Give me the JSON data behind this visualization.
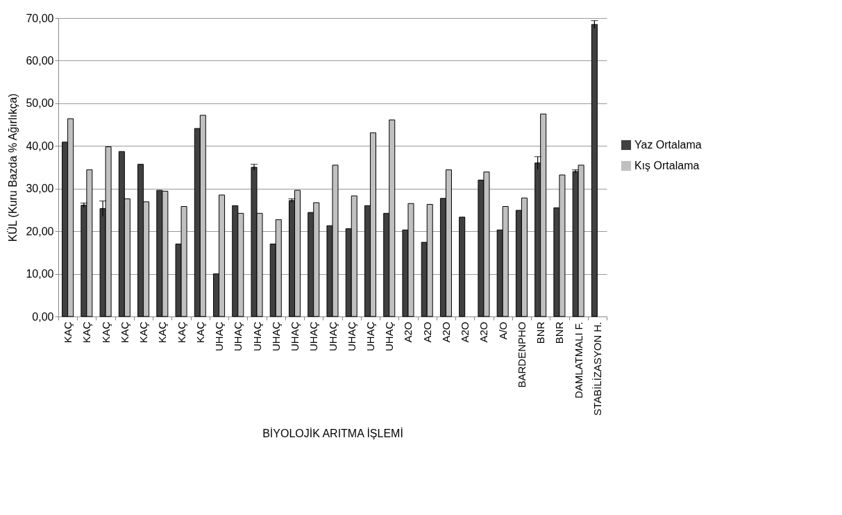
{
  "chart_data": {
    "type": "bar",
    "xlabel": "BİYOLOJİK ARITMA İŞLEMİ",
    "ylabel": "KÜL (Kuru Bazda % Ağırlıkça)",
    "categories": [
      "KAÇ",
      "KAÇ",
      "KAÇ",
      "KAÇ",
      "KAÇ",
      "KAÇ",
      "KAÇ",
      "KAÇ",
      "UHAÇ",
      "UHAÇ",
      "UHAÇ",
      "UHAÇ",
      "UHAÇ",
      "UHAÇ",
      "UHAÇ",
      "UHAÇ",
      "UHAÇ",
      "UHAÇ",
      "A2O",
      "A2O",
      "A2O",
      "A2O",
      "A2O",
      "A/O",
      "BARDENPHO",
      "BNR",
      "BNR",
      "DAMLATMALI F.",
      "STABİLİZASYON H."
    ],
    "series": [
      {
        "name": "Yaz Ortalama",
        "color": "#404040",
        "values": [
          40.9,
          26.1,
          25.3,
          38.7,
          35.7,
          29.6,
          17.0,
          44.1,
          10.0,
          26.0,
          35.0,
          17.0,
          27.2,
          24.4,
          21.3,
          20.6,
          26.0,
          24.2,
          20.3,
          17.4,
          27.7,
          23.3,
          32.0,
          20.3,
          24.9,
          36.0,
          25.5,
          34.0,
          68.5
        ],
        "errors": [
          null,
          0.5,
          1.8,
          null,
          null,
          null,
          null,
          null,
          null,
          null,
          0.7,
          null,
          0.4,
          null,
          null,
          null,
          null,
          null,
          null,
          null,
          null,
          null,
          null,
          null,
          null,
          1.5,
          null,
          0.4,
          0.9
        ]
      },
      {
        "name": "Kış Ortalama",
        "color": "#c0c0c0",
        "values": [
          46.4,
          34.4,
          39.8,
          27.6,
          26.9,
          29.4,
          25.8,
          47.2,
          28.5,
          24.2,
          24.2,
          22.7,
          29.6,
          26.7,
          35.5,
          28.3,
          43.1,
          46.1,
          26.5,
          26.3,
          34.4,
          null,
          33.9,
          25.8,
          27.8,
          47.5,
          33.2,
          35.5,
          null
        ]
      }
    ],
    "ylim": [
      0,
      70
    ],
    "yticks": [
      {
        "value": 0,
        "label": "0,00"
      },
      {
        "value": 10,
        "label": "10,00"
      },
      {
        "value": 20,
        "label": "20,00"
      },
      {
        "value": 30,
        "label": "30,00"
      },
      {
        "value": 40,
        "label": "40,00"
      },
      {
        "value": 50,
        "label": "50,00"
      },
      {
        "value": 60,
        "label": "60,00"
      },
      {
        "value": 70,
        "label": "70,00"
      }
    ],
    "grid": "y",
    "legend": "right"
  }
}
